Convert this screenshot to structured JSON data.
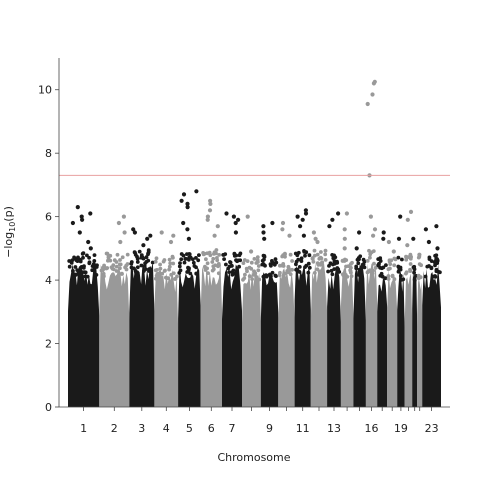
{
  "chart_data": {
    "type": "scatter",
    "subtype": "manhattan",
    "title": "",
    "xlabel": "Chromosome",
    "ylabel_prefix": "−log",
    "ylabel_sub": "10",
    "ylabel_suffix": "(p)",
    "ylim": [
      0,
      11
    ],
    "yticks": [
      0,
      2,
      4,
      6,
      8,
      10
    ],
    "significance_threshold": 7.3,
    "threshold_color": "#e8a0a0",
    "colors": [
      "#1a1a1a",
      "#999999"
    ],
    "grid": false,
    "legend": "none",
    "chromosomes": [
      {
        "chr": 1,
        "label": "1",
        "width": 2.5,
        "bulk": 4.3,
        "top": [
          6.3,
          6.1,
          6.0,
          5.9,
          5.8,
          5.5,
          5.2,
          5.0
        ]
      },
      {
        "chr": 2,
        "label": "2",
        "width": 2.4,
        "bulk": 4.3,
        "top": [
          6.0,
          5.8,
          5.5,
          5.2
        ]
      },
      {
        "chr": 3,
        "label": "3",
        "width": 2.0,
        "bulk": 4.4,
        "top": [
          5.6,
          5.5,
          5.4,
          5.3,
          5.1
        ]
      },
      {
        "chr": 4,
        "label": "4",
        "width": 1.9,
        "bulk": 4.2,
        "top": [
          5.5,
          5.4,
          5.2
        ]
      },
      {
        "chr": 5,
        "label": "5",
        "width": 1.8,
        "bulk": 4.3,
        "top": [
          6.8,
          6.7,
          6.5,
          6.4,
          6.3,
          5.8,
          5.6,
          5.3
        ]
      },
      {
        "chr": 6,
        "label": "6",
        "width": 1.7,
        "bulk": 4.4,
        "top": [
          6.5,
          6.4,
          6.2,
          6.0,
          5.9,
          5.7,
          5.4
        ]
      },
      {
        "chr": 7,
        "label": "7",
        "width": 1.6,
        "bulk": 4.3,
        "top": [
          6.1,
          6.0,
          5.9,
          5.8,
          5.5
        ]
      },
      {
        "chr": 8,
        "label": "",
        "width": 1.5,
        "bulk": 4.2,
        "top": [
          6.0,
          4.9
        ]
      },
      {
        "chr": 9,
        "label": "9",
        "width": 1.4,
        "bulk": 4.3,
        "top": [
          5.8,
          5.7,
          5.5,
          5.3
        ]
      },
      {
        "chr": 10,
        "label": "",
        "width": 1.3,
        "bulk": 4.3,
        "top": [
          5.8,
          5.6,
          5.4
        ]
      },
      {
        "chr": 11,
        "label": "11",
        "width": 1.3,
        "bulk": 4.4,
        "top": [
          6.2,
          6.1,
          6.0,
          5.9,
          5.7,
          5.4
        ]
      },
      {
        "chr": 12,
        "label": "",
        "width": 1.3,
        "bulk": 4.4,
        "top": [
          5.5,
          5.3,
          5.2
        ]
      },
      {
        "chr": 13,
        "label": "13",
        "width": 1.1,
        "bulk": 4.3,
        "top": [
          6.1,
          5.9,
          5.7
        ]
      },
      {
        "chr": 14,
        "label": "",
        "width": 1.0,
        "bulk": 4.3,
        "top": [
          6.1,
          5.6,
          5.3,
          5.0
        ]
      },
      {
        "chr": 15,
        "label": "",
        "width": 1.0,
        "bulk": 4.3,
        "top": [
          5.5,
          5.0
        ]
      },
      {
        "chr": 16,
        "label": "16",
        "width": 0.9,
        "bulk": 4.4,
        "top": [
          10.25,
          10.2,
          9.85,
          9.55,
          7.3,
          6.0,
          5.6,
          5.4
        ]
      },
      {
        "chr": 17,
        "label": "",
        "width": 0.8,
        "bulk": 4.2,
        "top": [
          5.5,
          5.3
        ]
      },
      {
        "chr": 18,
        "label": "",
        "width": 0.8,
        "bulk": 4.2,
        "top": [
          5.2,
          4.9
        ]
      },
      {
        "chr": 19,
        "label": "19",
        "width": 0.6,
        "bulk": 4.2,
        "top": [
          6.0,
          5.3
        ]
      },
      {
        "chr": 20,
        "label": "",
        "width": 0.6,
        "bulk": 4.3,
        "top": [
          6.15,
          5.9,
          5.1
        ]
      },
      {
        "chr": 21,
        "label": "",
        "width": 0.4,
        "bulk": 4.1,
        "top": [
          5.3
        ]
      },
      {
        "chr": 22,
        "label": "",
        "width": 0.4,
        "bulk": 4.2,
        "top": [
          4.8
        ]
      },
      {
        "chr": 23,
        "label": "23",
        "width": 1.5,
        "bulk": 4.3,
        "top": [
          5.7,
          5.6,
          5.2,
          5.0
        ]
      }
    ]
  }
}
